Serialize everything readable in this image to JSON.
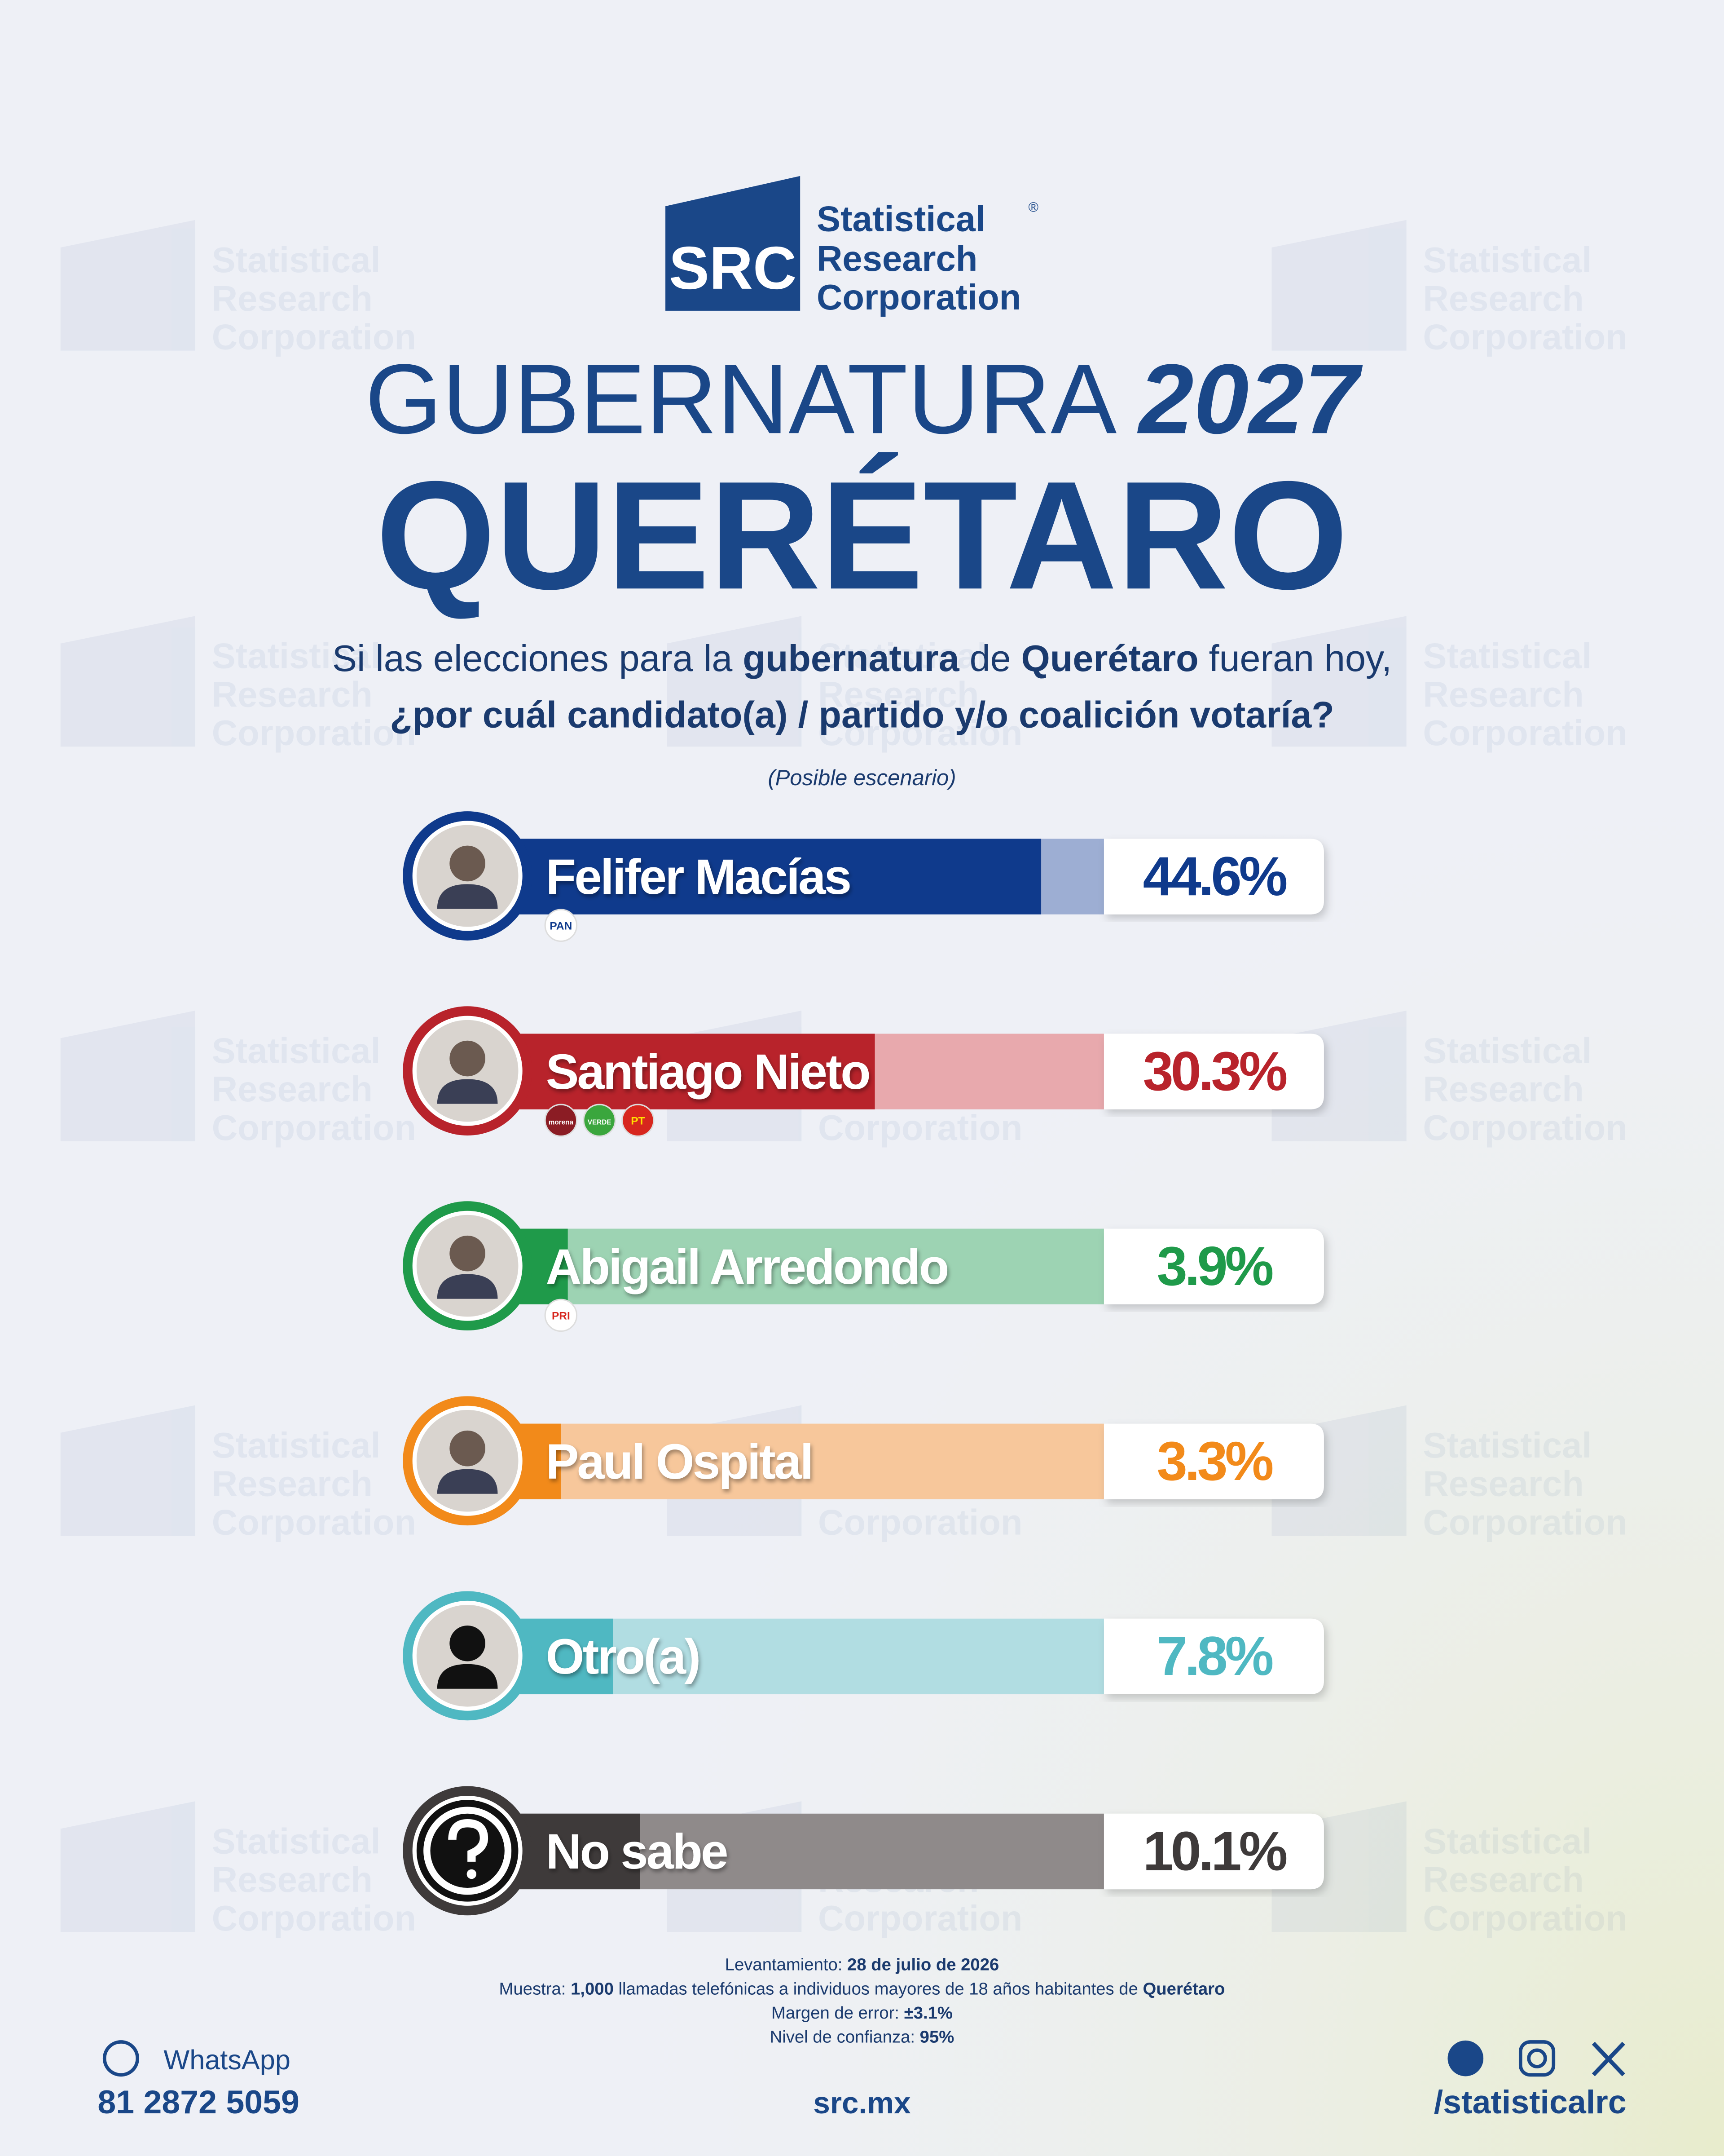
{
  "logo": {
    "mark": "SRC",
    "line1": "Statistical",
    "line2": "Research",
    "line3": "Corporation",
    "registered": "®"
  },
  "chart_data": {
    "type": "bar",
    "orientation": "horizontal",
    "title": "GUBERNATURA",
    "title_year": "2027",
    "subtitle": "QUERÉTARO",
    "question": [
      [
        {
          "text": "Si las elecciones para la ",
          "bold": false
        },
        {
          "text": "gubernatura",
          "bold": true
        },
        {
          "text": " de ",
          "bold": false
        },
        {
          "text": "Querétaro",
          "bold": true
        },
        {
          "text": " fueran hoy,",
          "bold": false
        }
      ],
      [
        {
          "text": "¿por cuál candidato(a) / partido y/o coalición votaría?",
          "bold": true
        }
      ]
    ],
    "note": "(Posible escenario)",
    "categories": [
      "Felifer Macías",
      "Santiago Nieto",
      "Abigail Arredondo",
      "Paul Ospital",
      "Otro(a)",
      "No sabe"
    ],
    "values": [
      44.6,
      30.3,
      3.9,
      3.3,
      7.8,
      10.1
    ],
    "value_labels": [
      "44.6%",
      "30.3%",
      "3.9%",
      "3.3%",
      "7.8%",
      "10.1%"
    ],
    "colors": [
      "#0f3a8c",
      "#b8232b",
      "#1f9a4a",
      "#f28a1a",
      "#4fb8c2",
      "#3e3a3a"
    ],
    "light_colors": [
      "#9daed3",
      "#e8a9ad",
      "#9dd3b3",
      "#f7c79b",
      "#b1dde2",
      "#8f8a8a"
    ],
    "parties": [
      [
        {
          "label": "PAN",
          "color": "#ffffff",
          "text": "#0f3a8c"
        }
      ],
      [
        {
          "label": "morena",
          "color": "#8b1c24",
          "text": "#ffffff"
        },
        {
          "label": "VERDE",
          "color": "#3aa63d",
          "text": "#ffffff"
        },
        {
          "label": "PT",
          "color": "#d7261e",
          "text": "#ffe100"
        }
      ],
      [
        {
          "label": "PRI",
          "color": "#ffffff",
          "text": "#d7261e"
        }
      ],
      [],
      [],
      []
    ],
    "xlim": [
      0,
      50
    ]
  },
  "footer": {
    "notes": [
      [
        {
          "text": "Levantamiento: ",
          "bold": false
        },
        {
          "text": "28 de julio de 2026",
          "bold": true
        }
      ],
      [
        {
          "text": "Muestra: ",
          "bold": false
        },
        {
          "text": "1,000",
          "bold": true
        },
        {
          "text": " llamadas telefónicas a individuos mayores de 18 años habitantes de ",
          "bold": false
        },
        {
          "text": "Querétaro",
          "bold": true
        }
      ],
      [
        {
          "text": "Margen de error: ",
          "bold": false
        },
        {
          "text": "±3.1%",
          "bold": true
        }
      ],
      [
        {
          "text": "Nivel de confianza: ",
          "bold": false
        },
        {
          "text": "95%",
          "bold": true
        }
      ]
    ],
    "whatsapp": "WhatsApp",
    "phone": "81 2872 5059",
    "website": "src.mx",
    "social": "/statisticalrc"
  }
}
